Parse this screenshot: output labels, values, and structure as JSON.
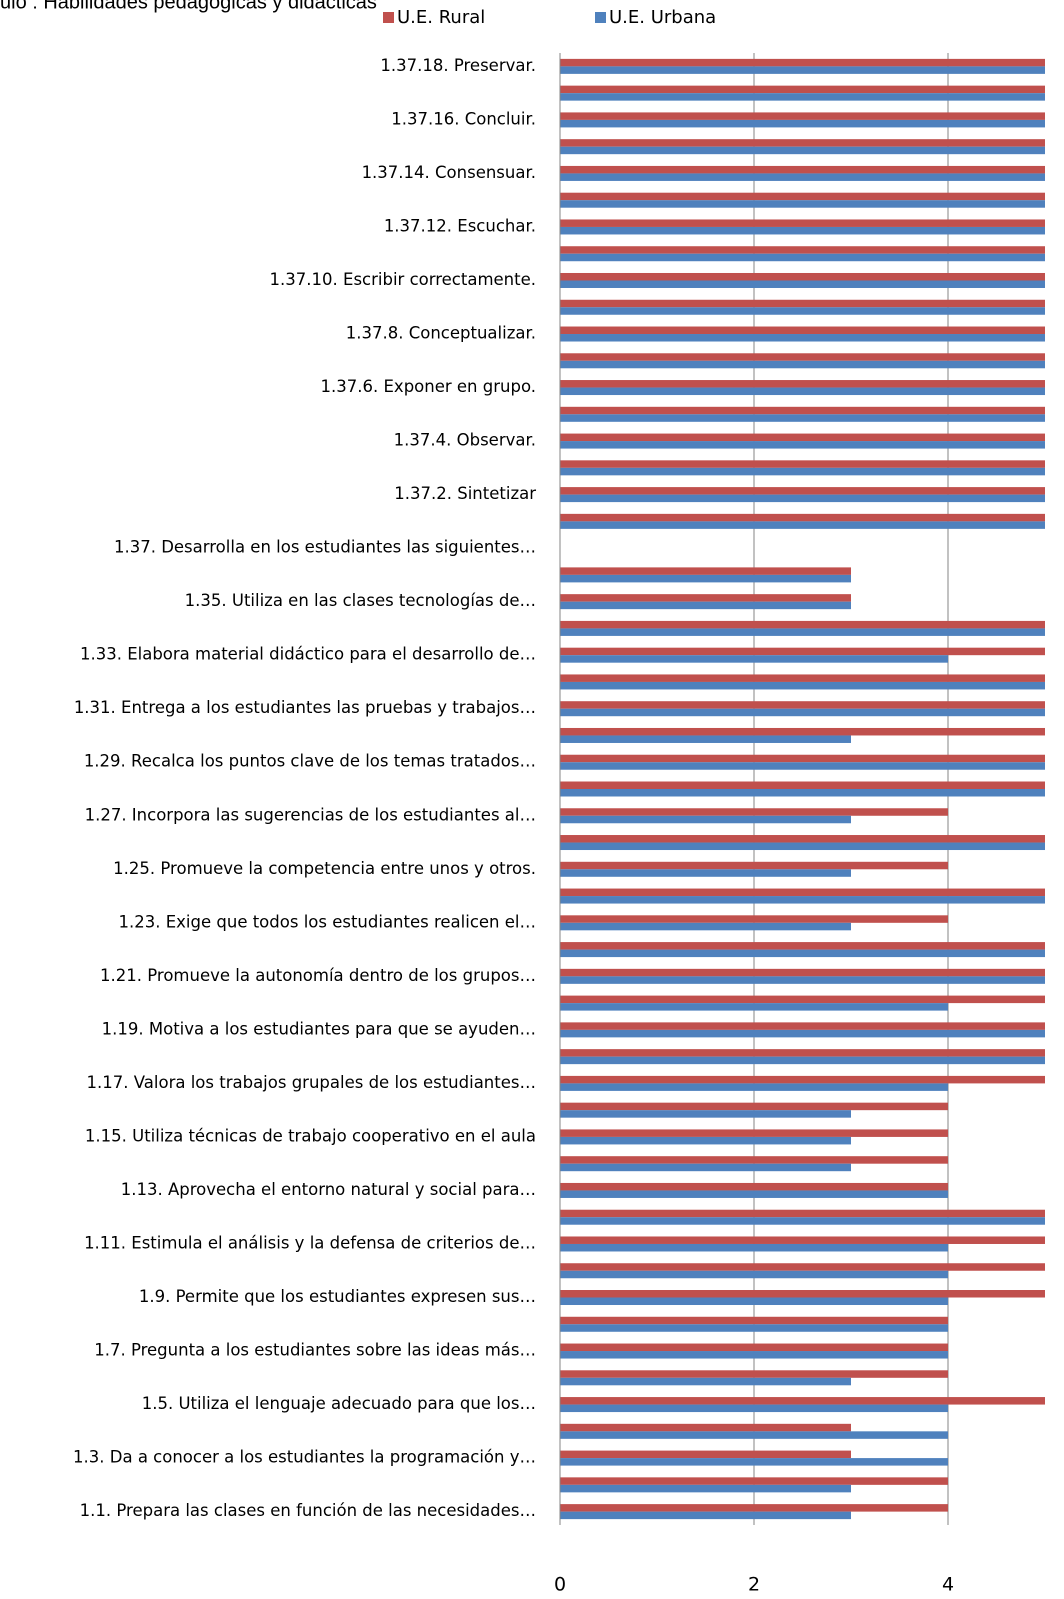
{
  "chart_data": {
    "type": "hbar",
    "title": "ulo : Habilidades pedagógicas y didácticas",
    "categories": [
      "1.1.   Prepara las clases en función de las necesidades…",
      null,
      "1.3.  Da  a conocer a los estudiantes la programación y…",
      null,
      "1.5.   Utiliza el lenguaje adecuado para que los…",
      null,
      "1.7.  Pregunta a los estudiantes sobre las ideas más…",
      null,
      "1.9.  Permite que los estudiantes expresen sus…",
      null,
      "1.11.   Estimula el análisis y la defensa de criterios de…",
      null,
      "1.13.   Aprovecha el entorno natural y social para…",
      null,
      "1.15.   Utiliza técnicas de trabajo cooperativo en el aula",
      null,
      "1.17.   Valora los trabajos grupales de los estudiantes…",
      null,
      "1.19.   Motiva  a los estudiantes para que se ayuden…",
      null,
      "1.21.   Promueve la autonomía dentro de los grupos…",
      null,
      "1.23.   Exige que todos los estudiantes realicen el…",
      null,
      "1.25.   Promueve la competencia entre unos y otros.",
      null,
      "1.27.   Incorpora las sugerencias de los estudiantes al…",
      null,
      "1.29.   Recalca los puntos clave de los temas tratados…",
      null,
      "1.31.   Entrega a los estudiantes las pruebas y trabajos…",
      null,
      "1.33.   Elabora material didáctico para el desarrollo de…",
      null,
      "1.35.   Utiliza en las clases tecnologías de…",
      null,
      "1.37.   Desarrolla en los estudiantes las siguientes…",
      null,
      "1.37.2.    Sintetizar",
      null,
      "1.37.4.    Observar.",
      null,
      "1.37.6.    Exponer en grupo.",
      null,
      "1.37.8.    Conceptualizar.",
      null,
      "1.37.10.   Escribir correctamente.",
      null,
      "1.37.12.  Escuchar.",
      null,
      "1.37.14.  Consensuar.",
      null,
      "1.37.16.  Concluir.",
      null,
      "1.37.18.  Preservar."
    ],
    "series": [
      {
        "name": "U.E. Rural",
        "color": "#c0504d",
        "values": [
          4,
          4,
          3,
          3,
          5,
          4,
          4,
          4,
          5,
          5,
          5,
          5,
          4,
          4,
          4,
          4,
          5,
          5,
          5,
          5,
          5,
          5,
          4,
          5,
          4,
          5,
          4,
          5,
          5,
          5,
          5,
          5,
          5,
          5,
          3,
          3,
          null,
          5,
          5,
          5,
          5,
          5,
          5,
          5,
          5,
          5,
          5,
          5,
          5,
          5,
          5,
          5,
          5,
          5,
          5
        ]
      },
      {
        "name": "U.E. Urbana",
        "color": "#4f81bd",
        "values": [
          3,
          3,
          4,
          4,
          4,
          3,
          4,
          4,
          4,
          4,
          4,
          5,
          4,
          3,
          3,
          3,
          4,
          5,
          5,
          4,
          5,
          5,
          3,
          5,
          3,
          5,
          3,
          5,
          5,
          3,
          5,
          5,
          4,
          5,
          3,
          3,
          null,
          5,
          5,
          5,
          5,
          5,
          5,
          5,
          5,
          5,
          5,
          5,
          5,
          5,
          5,
          5,
          5,
          5,
          5
        ]
      }
    ],
    "xlim": [
      0,
      5
    ],
    "xticks": [
      0,
      2,
      4
    ],
    "grid": true,
    "legend": "top"
  }
}
